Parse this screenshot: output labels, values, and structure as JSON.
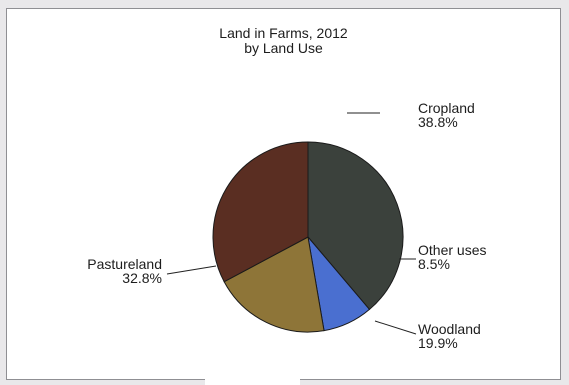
{
  "chart_data": {
    "type": "pie",
    "title": "Land in Farms, 2012",
    "subtitle": "by Land Use",
    "slices": [
      {
        "name": "Cropland",
        "value": 38.8,
        "label": "38.8%",
        "color": "#3b413c"
      },
      {
        "name": "Other uses",
        "value": 8.5,
        "label": "8.5%",
        "color": "#4a6fd0"
      },
      {
        "name": "Woodland",
        "value": 19.9,
        "label": "19.9%",
        "color": "#8e7538"
      },
      {
        "name": "Pastureland",
        "value": 32.8,
        "label": "32.8%",
        "color": "#5a2e22"
      }
    ],
    "start_angle": "12 o'clock",
    "direction": "clockwise",
    "labels": "outside with leader lines"
  }
}
